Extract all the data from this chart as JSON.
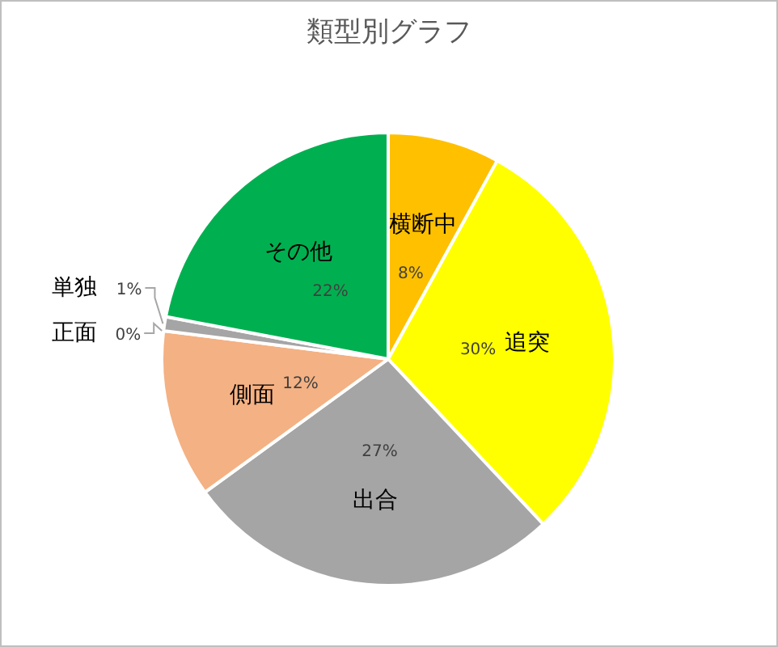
{
  "chart_data": {
    "type": "pie",
    "title": "類型別グラフ",
    "categories": [
      "横断中",
      "追突",
      "出合",
      "側面",
      "正面",
      "単独",
      "その他"
    ],
    "values": [
      8,
      30,
      27,
      12,
      0,
      1,
      22
    ],
    "value_labels": [
      "8%",
      "30%",
      "27%",
      "12%",
      "0%",
      "1%",
      "22%"
    ],
    "colors": [
      "#ffc000",
      "#ffff00",
      "#a5a5a5",
      "#f4b183",
      "#5b9bd5",
      "#a5a5a5",
      "#00b050"
    ]
  }
}
